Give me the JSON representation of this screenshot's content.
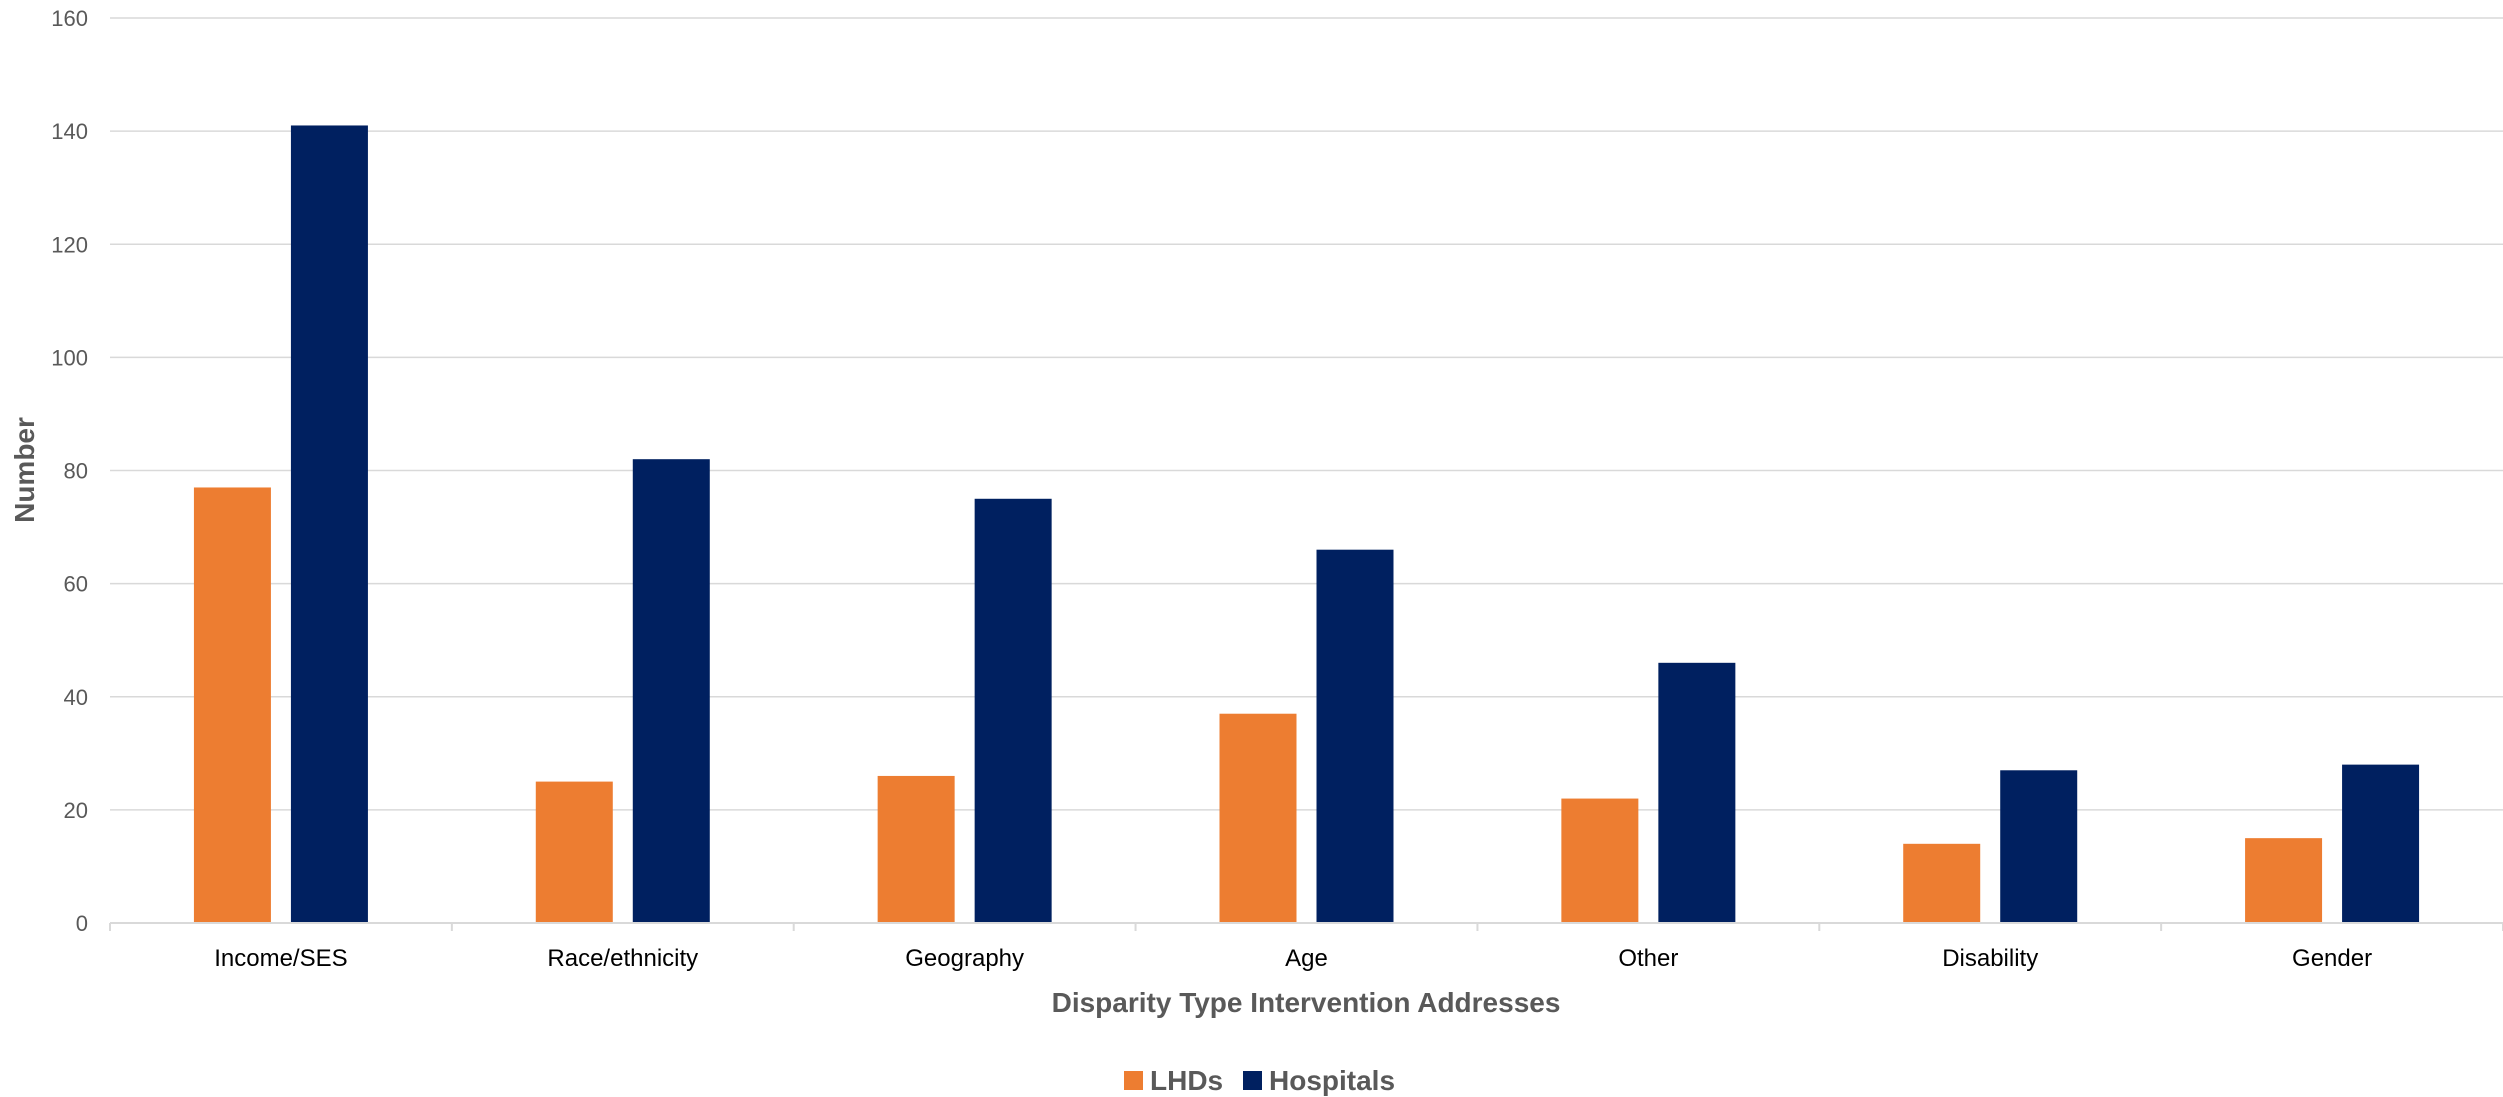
{
  "chart_data": {
    "type": "bar",
    "title": "",
    "xlabel": "Disparity Type Intervention Addresses",
    "ylabel": "Number",
    "categories": [
      "Income/SES",
      "Race/ethnicity",
      "Geography",
      "Age",
      "Other",
      "Disability",
      "Gender"
    ],
    "series": [
      {
        "name": "LHDs",
        "color": "#ED7D31",
        "values": [
          77,
          25,
          26,
          37,
          22,
          14,
          15
        ]
      },
      {
        "name": "Hospitals",
        "color": "#002060",
        "values": [
          141,
          82,
          75,
          66,
          46,
          27,
          28
        ]
      }
    ],
    "ylim": [
      0,
      160
    ],
    "yticks": [
      0,
      20,
      40,
      60,
      80,
      100,
      120,
      140,
      160
    ],
    "grid": true,
    "legend_position": "bottom"
  }
}
